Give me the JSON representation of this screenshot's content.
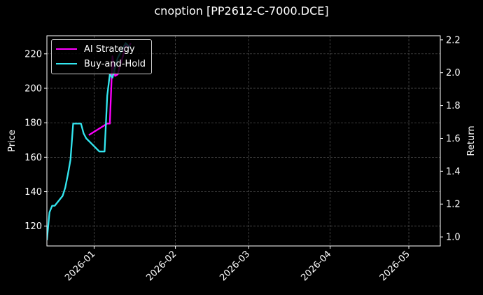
{
  "chart_data": {
    "type": "line",
    "title": "cnoption [PP2612-C-7000.DCE]",
    "ylabel": "Price",
    "ylabel_right": "Return",
    "xlim": [
      "2025-12-14",
      "2026-05-13"
    ],
    "ylim_left": [
      108.5,
      230.5
    ],
    "ylim_right": [
      0.945,
      2.225
    ],
    "left_ticks": [
      120,
      140,
      160,
      180,
      200,
      220
    ],
    "right_ticks": [
      "1.0",
      "1.2",
      "1.4",
      "1.6",
      "1.8",
      "2.0",
      "2.2"
    ],
    "x_ticks": [
      "2026-01",
      "2026-02",
      "2026-03",
      "2026-04",
      "2026-05"
    ],
    "x_tick_dates": [
      "2026-01-01",
      "2026-02-01",
      "2026-03-01",
      "2026-04-01",
      "2026-05-01"
    ],
    "grid": true,
    "legend_position": "upper-left",
    "background": "#000000",
    "series": [
      {
        "name": "AI Strategy",
        "axis": "right",
        "color": "#ff00ff",
        "points": [
          [
            "2025-12-30",
            1.62
          ],
          [
            "2026-01-06",
            1.69
          ],
          [
            "2026-01-07",
            1.69
          ],
          [
            "2026-01-08",
            2.1
          ],
          [
            "2026-01-09",
            1.98
          ],
          [
            "2026-01-10",
            1.99
          ],
          [
            "2026-01-11",
            2.05
          ],
          [
            "2026-01-12",
            2.1
          ],
          [
            "2026-01-13",
            2.18
          ],
          [
            "2026-01-14",
            2.15
          ],
          [
            "2026-01-15",
            2.18
          ]
        ]
      },
      {
        "name": "Buy-and-Hold",
        "axis": "right",
        "color": "#33e6f0",
        "points": [
          [
            "2025-12-14",
            0.98
          ],
          [
            "2025-12-15",
            1.15
          ],
          [
            "2025-12-16",
            1.19
          ],
          [
            "2025-12-17",
            1.19
          ],
          [
            "2025-12-18",
            1.21
          ],
          [
            "2025-12-20",
            1.25
          ],
          [
            "2025-12-21",
            1.3
          ],
          [
            "2025-12-22",
            1.38
          ],
          [
            "2025-12-23",
            1.47
          ],
          [
            "2025-12-24",
            1.69
          ],
          [
            "2025-12-27",
            1.69
          ],
          [
            "2025-12-28",
            1.63
          ],
          [
            "2025-12-29",
            1.6
          ],
          [
            "2026-01-03",
            1.52
          ],
          [
            "2026-01-05",
            1.52
          ],
          [
            "2026-01-06",
            1.86
          ],
          [
            "2026-01-07",
            1.99
          ],
          [
            "2026-01-08",
            1.97
          ],
          [
            "2026-01-09",
            2.03
          ],
          [
            "2026-01-10",
            2.09
          ],
          [
            "2026-01-11",
            2.12
          ],
          [
            "2026-01-13",
            2.18
          ],
          [
            "2026-01-15",
            2.15
          ]
        ]
      }
    ]
  }
}
